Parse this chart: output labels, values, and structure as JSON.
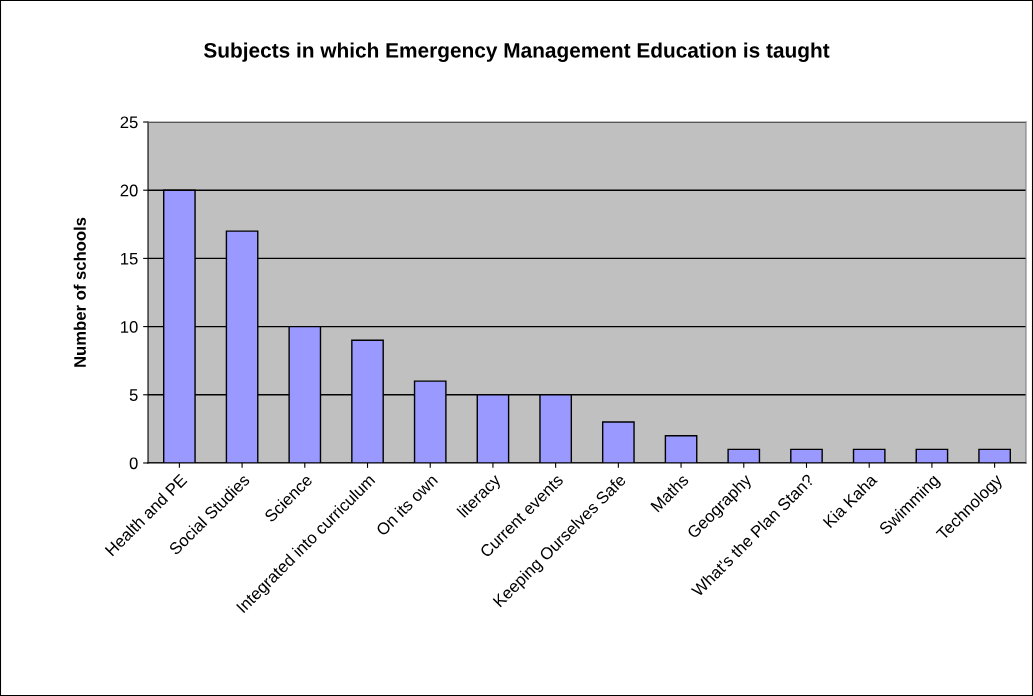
{
  "chart_data": {
    "type": "bar",
    "title": "Subjects in which Emergency Management Education is taught",
    "ylabel": "Number of schools",
    "categories": [
      "Health and PE",
      "Social Studies",
      "Science",
      "Integrated into curriculum",
      "On its own",
      "literacy",
      "Current events",
      "Keeping Ourselves Safe",
      "Maths",
      "Geography",
      "What's the Plan Stan?",
      "Kia Kaha",
      "Swimming",
      "Technology"
    ],
    "values": [
      20,
      17,
      10,
      9,
      6,
      5,
      5,
      3,
      2,
      1,
      1,
      1,
      1,
      1
    ],
    "color": "#9999ff",
    "ylim": [
      0,
      25
    ],
    "yticks": [
      0,
      5,
      10,
      15,
      20,
      25
    ],
    "grid": "y"
  }
}
